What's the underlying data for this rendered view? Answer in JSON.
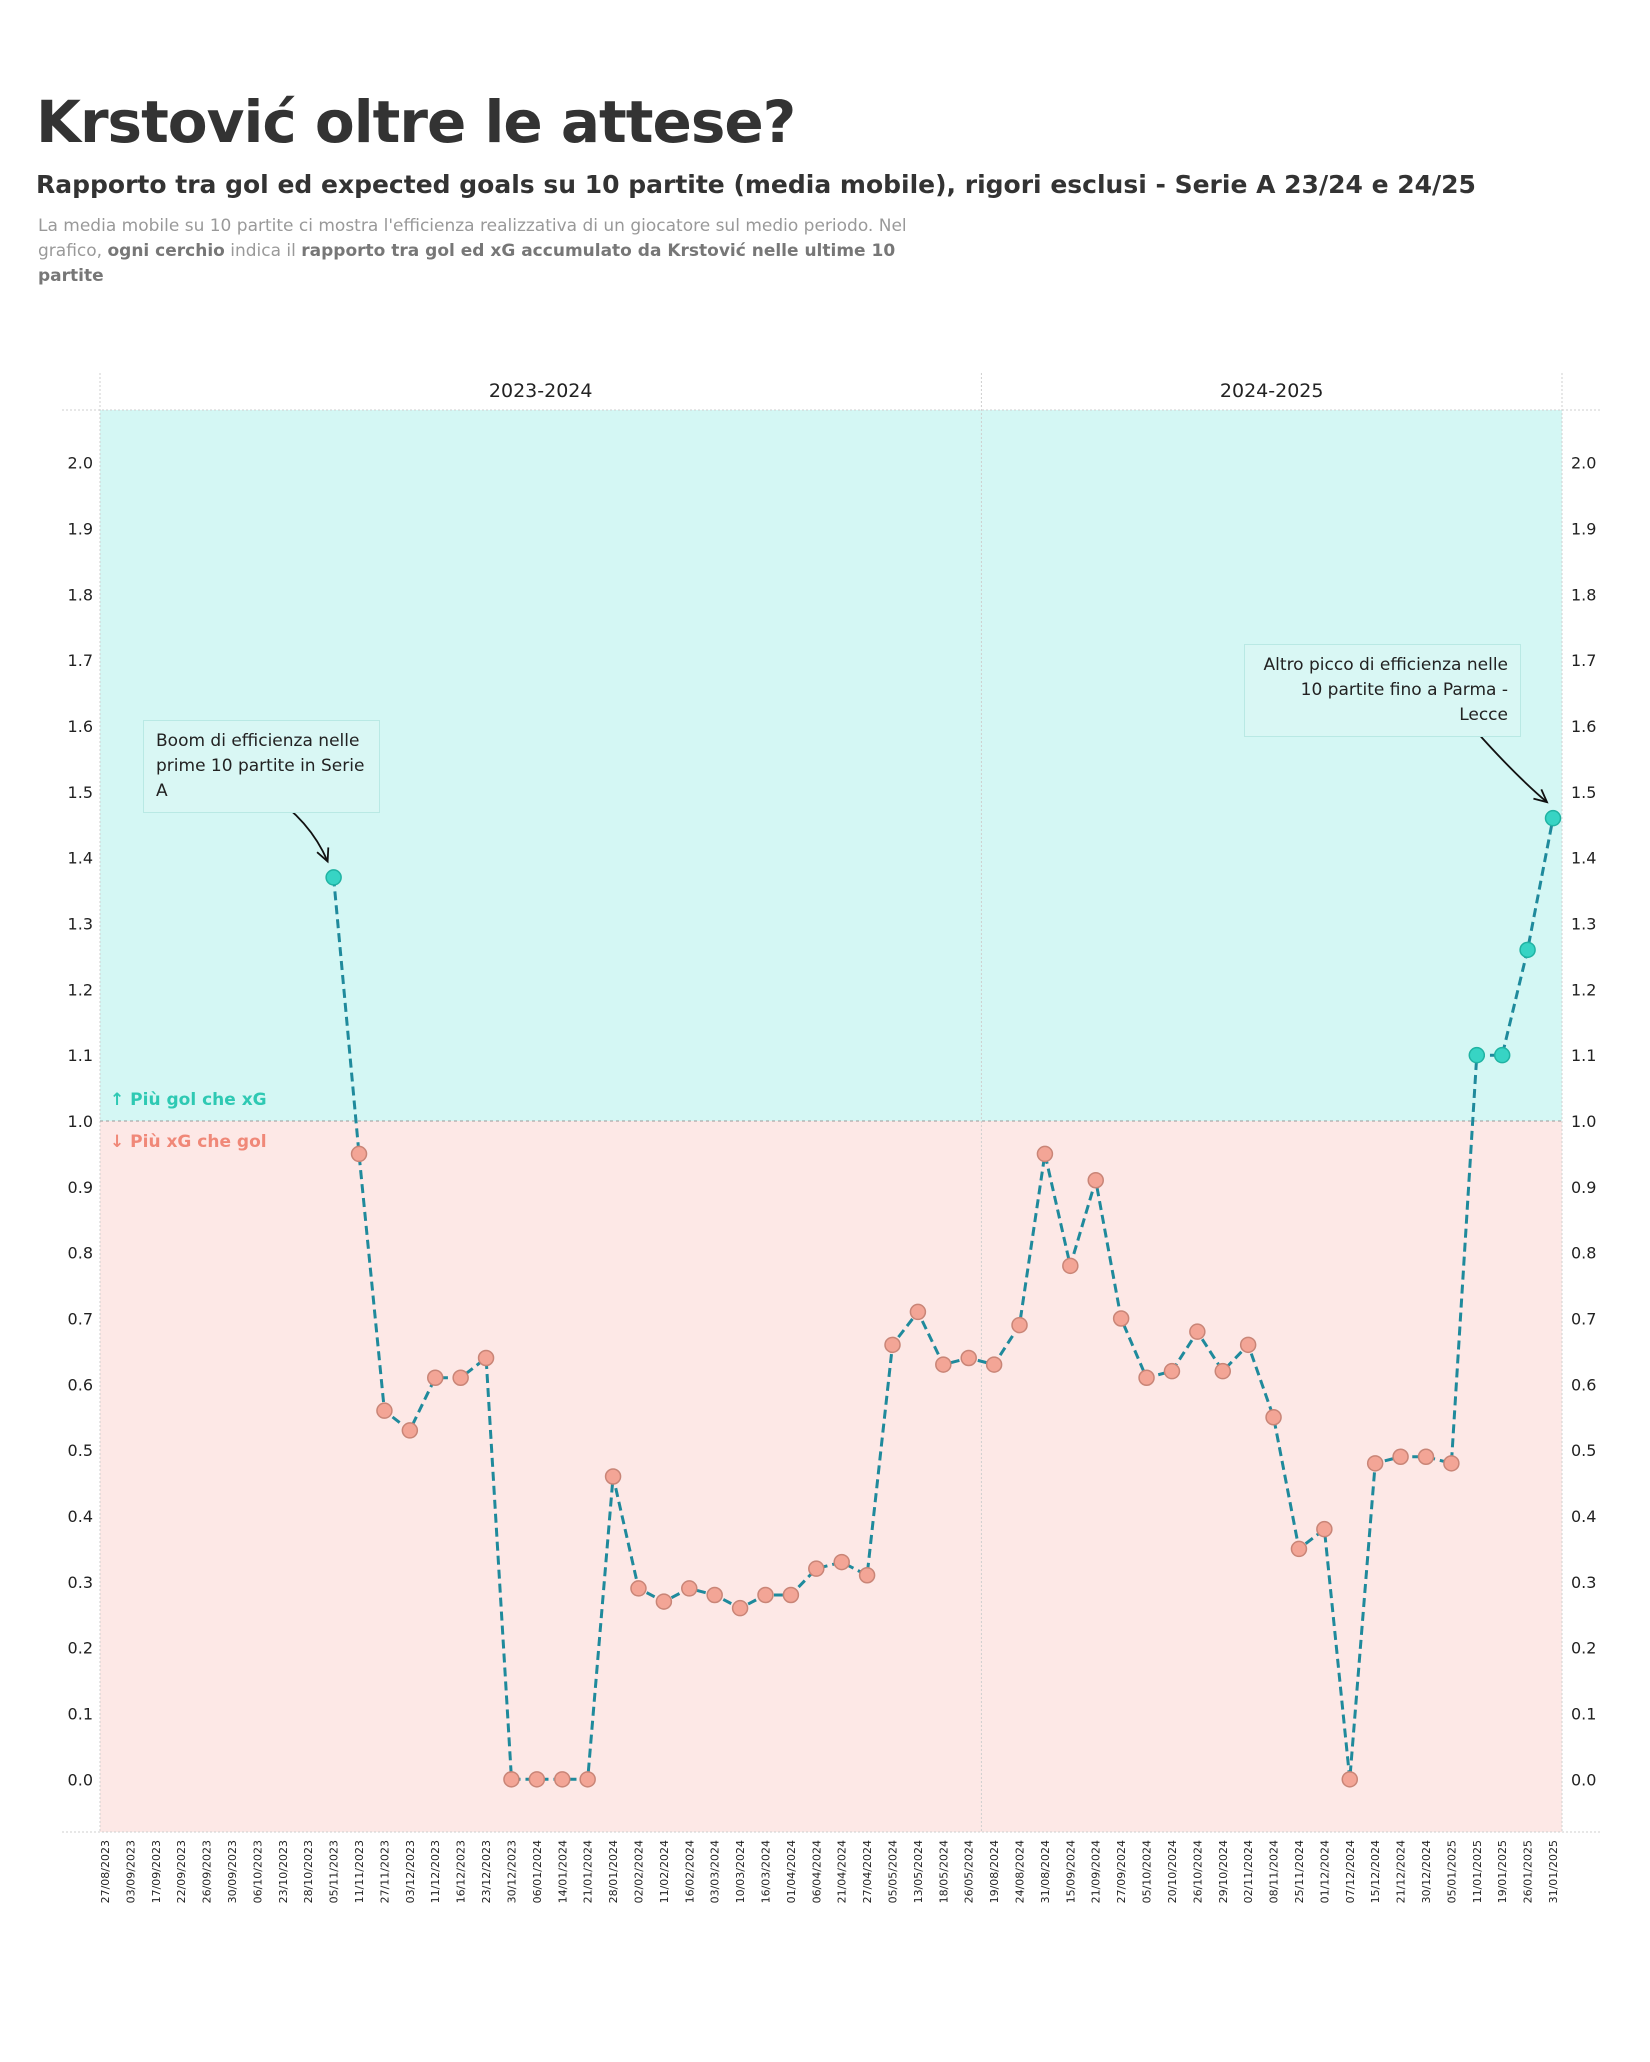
{
  "header": {
    "title": "Krstović oltre le attese?",
    "subtitle": "Rapporto tra gol ed expected goals su 10 partite (media mobile), rigori esclusi - Serie A 23/24 e 24/25",
    "desc_1": "La media mobile su 10 partite ci mostra l'efficienza realizzativa di un giocatore sul medio periodo. Nel grafico, ",
    "desc_bold_1": "ogni cerchio",
    "desc_2": " indica il ",
    "desc_bold_2": "rapporto tra gol ed xG accumulato da Krstović nelle ultime 10 partite"
  },
  "zones": {
    "up_label": "↑ Più gol che xG",
    "down_label": "↓ Più xG che gol",
    "up_color": "#d4f7f4",
    "down_color": "#fde8e6"
  },
  "annotations": {
    "left": [
      "Boom di efficienza nelle",
      "prime 10 partite in Serie A"
    ],
    "right": [
      "Altro picco di efficienza nelle",
      "10 partite fino a Parma - Lecce"
    ]
  },
  "chart_data": {
    "type": "line",
    "ylim": [
      -0.08,
      2.08
    ],
    "yticks": [
      "0.0",
      "0.1",
      "0.2",
      "0.3",
      "0.4",
      "0.5",
      "0.6",
      "0.7",
      "0.8",
      "0.9",
      "1.0",
      "1.1",
      "1.2",
      "1.3",
      "1.4",
      "1.5",
      "1.6",
      "1.7",
      "1.8",
      "1.9",
      "2.0"
    ],
    "threshold": 1.0,
    "colors": {
      "line": "#1f8a9c",
      "above": "#37d4c4",
      "below": "#f3a596"
    },
    "seasons": [
      {
        "name": "2023-2024",
        "dates": [
          "27/08/2023",
          "03/09/2023",
          "17/09/2023",
          "22/09/2023",
          "26/09/2023",
          "30/09/2023",
          "06/10/2023",
          "23/10/2023",
          "28/10/2023",
          "05/11/2023",
          "11/11/2023",
          "27/11/2023",
          "03/12/2023",
          "11/12/2023",
          "16/12/2023",
          "23/12/2023",
          "30/12/2023",
          "06/01/2024",
          "14/01/2024",
          "21/01/2024",
          "28/01/2024",
          "02/02/2024",
          "11/02/2024",
          "16/02/2024",
          "03/03/2024",
          "10/03/2024",
          "16/03/2024",
          "01/04/2024",
          "06/04/2024",
          "21/04/2024",
          "27/04/2024",
          "05/05/2024",
          "13/05/2024",
          "18/05/2024",
          "26/05/2024"
        ],
        "values": [
          null,
          null,
          null,
          null,
          null,
          null,
          null,
          null,
          null,
          1.37,
          0.95,
          0.56,
          0.53,
          0.61,
          0.61,
          0.64,
          0.0,
          0.0,
          0.0,
          0.0,
          0.46,
          0.29,
          0.27,
          0.29,
          0.28,
          0.26,
          0.28,
          0.28,
          0.32,
          0.33,
          0.31,
          0.66,
          0.71,
          0.63,
          0.64
        ]
      },
      {
        "name": "2024-2025",
        "dates": [
          "19/08/2024",
          "24/08/2024",
          "31/08/2024",
          "15/09/2024",
          "21/09/2024",
          "27/09/2024",
          "05/10/2024",
          "20/10/2024",
          "26/10/2024",
          "29/10/2024",
          "02/11/2024",
          "08/11/2024",
          "25/11/2024",
          "01/12/2024",
          "07/12/2024",
          "15/12/2024",
          "21/12/2024",
          "30/12/2024",
          "05/01/2025",
          "11/01/2025",
          "19/01/2025",
          "26/01/2025",
          "31/01/2025"
        ],
        "values": [
          0.63,
          0.69,
          0.95,
          0.78,
          0.91,
          0.7,
          0.61,
          0.62,
          0.68,
          0.62,
          0.66,
          0.55,
          0.35,
          0.38,
          0.0,
          0.48,
          0.49,
          0.49,
          0.48,
          1.1,
          1.1,
          1.26,
          1.46
        ]
      }
    ]
  }
}
